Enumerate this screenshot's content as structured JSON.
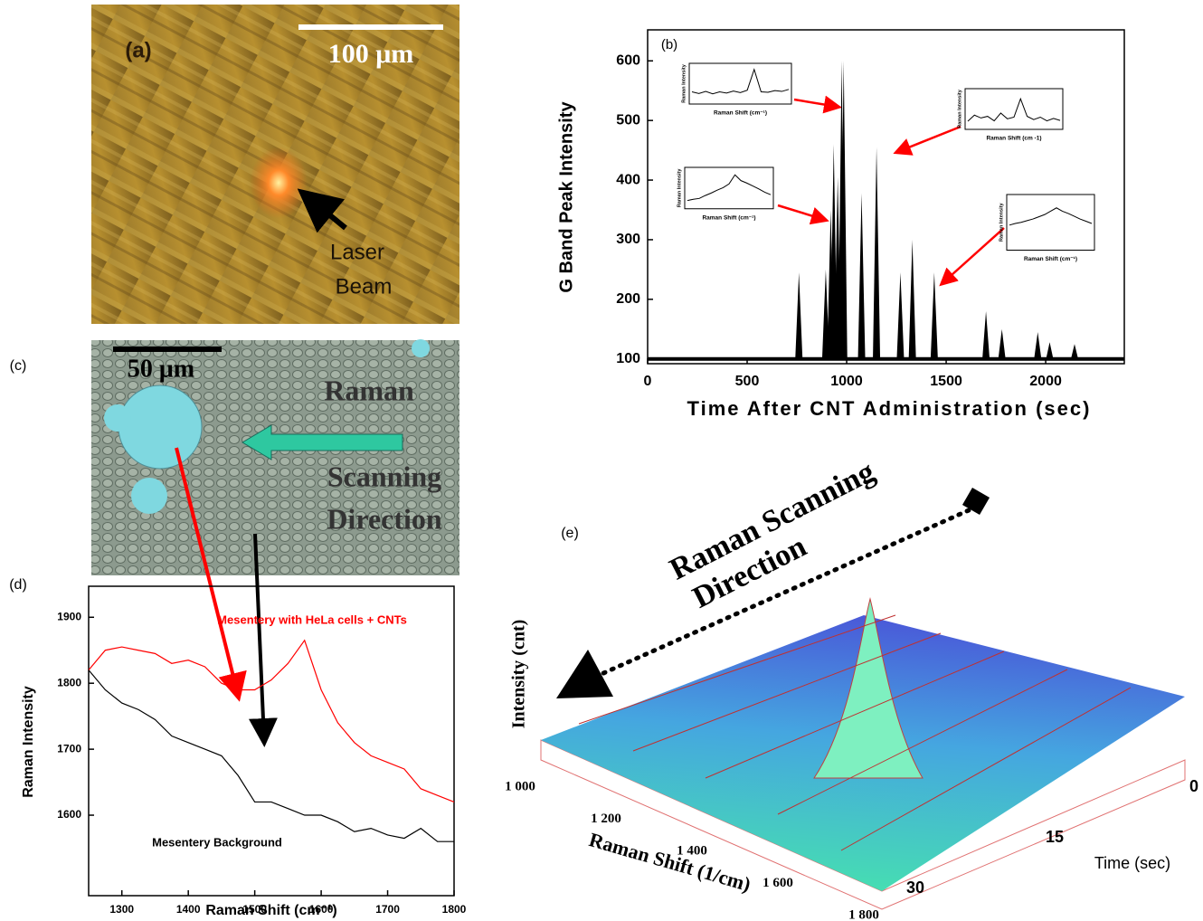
{
  "panels": {
    "a": {
      "label": "(a)",
      "scale_bar": "100 μm",
      "annotation": [
        "Laser",
        "Beam"
      ]
    },
    "c": {
      "label": "(c)",
      "scale_bar": "50 μm",
      "annotation": [
        "Raman",
        "Scanning",
        "Direction"
      ]
    }
  },
  "chart_data": [
    {
      "type": "spike",
      "label": "(b)",
      "xlabel": "Time After CNT Administration (sec)",
      "ylabel": "G Band Peak Intensity",
      "baseline": 100,
      "x": [
        760,
        895,
        920,
        935,
        955,
        975,
        985,
        1075,
        1150,
        1270,
        1330,
        1440,
        1700,
        1780,
        1960,
        2020,
        2145
      ],
      "values": [
        245,
        250,
        350,
        460,
        405,
        600,
        600,
        378,
        455,
        245,
        300,
        245,
        180,
        150,
        145,
        128,
        125
      ],
      "color": "#000000",
      "xlim": [
        0,
        2395
      ],
      "ylim": [
        92,
        652
      ],
      "xticks": [
        0,
        500,
        1000,
        1500,
        2000
      ],
      "yticks": [
        100,
        200,
        300,
        400,
        500,
        600
      ],
      "insets": [
        {
          "xlabel": "Raman Shift (cm⁻¹)",
          "ylabel": "Raman Intensity",
          "ylim": [
            0,
            10
          ],
          "values": [
            3,
            2.6,
            3.1,
            2.5,
            3,
            2.7,
            3.2,
            2.8,
            3.4,
            8.5,
            3,
            2.9,
            3.3,
            3.1,
            3.6
          ]
        },
        {
          "xlabel": "Raman Shift (cm -1)",
          "ylabel": "Raman Intensity",
          "ylim": [
            0,
            10
          ],
          "values": [
            2,
            3.5,
            2.8,
            3.2,
            2.1,
            4,
            2.6,
            3,
            7.5,
            3.2,
            2.4,
            3,
            2.1,
            2.7,
            2.2
          ]
        },
        {
          "xlabel": "Raman Shift (cm⁻¹)",
          "ylabel": "Raman Intensity",
          "ylim": [
            0,
            10
          ],
          "values": [
            2,
            2.3,
            2.5,
            3.2,
            3.8,
            4.5,
            5.1,
            6,
            8.2,
            6.8,
            6.2,
            5.5,
            4.8,
            4,
            3.4
          ]
        },
        {
          "xlabel": "Raman Shift (cm⁻¹)",
          "ylabel": "Raman Intensity",
          "ylim": [
            0,
            10
          ],
          "values": [
            4.5,
            4.8,
            5,
            5.3,
            5.6,
            6,
            6.4,
            7,
            7.6,
            7,
            6.6,
            6.1,
            5.6,
            5.2,
            4.8
          ]
        }
      ]
    },
    {
      "type": "line",
      "label": "(d)",
      "xlabel": "Raman Shift (cm⁻¹)",
      "ylabel": "Raman Intensity",
      "x": [
        1250,
        1275,
        1300,
        1325,
        1350,
        1375,
        1400,
        1425,
        1450,
        1475,
        1500,
        1525,
        1550,
        1575,
        1600,
        1625,
        1650,
        1675,
        1700,
        1725,
        1750,
        1775,
        1800
      ],
      "series": [
        {
          "name": "Mesentery with HeLa cells + CNTs",
          "color": "#ff0000",
          "values": [
            1820,
            1850,
            1855,
            1850,
            1845,
            1830,
            1835,
            1825,
            1800,
            1790,
            1790,
            1805,
            1830,
            1865,
            1790,
            1740,
            1710,
            1690,
            1680,
            1670,
            1640,
            1630,
            1620
          ]
        },
        {
          "name": "Mesentery Background",
          "color": "#000000",
          "values": [
            1820,
            1790,
            1770,
            1760,
            1745,
            1720,
            1710,
            1700,
            1690,
            1660,
            1620,
            1620,
            1610,
            1600,
            1600,
            1590,
            1575,
            1580,
            1570,
            1565,
            1580,
            1560,
            1560
          ]
        }
      ],
      "xlim": [
        1250,
        1800
      ],
      "ylim": [
        1478,
        1947
      ],
      "xticks": [
        1300,
        1400,
        1500,
        1600,
        1700,
        1800
      ],
      "yticks": [
        1600,
        1700,
        1800,
        1900
      ]
    },
    {
      "type": "surface",
      "label": "(e)",
      "title": [
        "Raman Scanning",
        "Direction"
      ],
      "ylabel": "Intensity (cnt)",
      "xlabel": "Raman Shift (1/cm)",
      "zlabel": "Time (sec)",
      "xlim": [
        1000,
        1800
      ],
      "xticks": [
        {
          "value": 1000,
          "label": "1 000"
        },
        {
          "value": 1200,
          "label": "1 200"
        },
        {
          "value": 1400,
          "label": "1 400"
        },
        {
          "value": 1600,
          "label": "1 600"
        },
        {
          "value": 1800,
          "label": "1 800"
        }
      ],
      "zlim": [
        0,
        30
      ],
      "zticks": [
        0,
        15,
        30
      ]
    }
  ]
}
